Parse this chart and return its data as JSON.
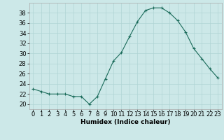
{
  "x": [
    0,
    1,
    2,
    3,
    4,
    5,
    6,
    7,
    8,
    9,
    10,
    11,
    12,
    13,
    14,
    15,
    16,
    17,
    18,
    19,
    20,
    21,
    22,
    23
  ],
  "y": [
    23,
    22.5,
    22,
    22,
    22,
    21.5,
    21.5,
    20,
    21.5,
    25,
    28.5,
    30.2,
    33.3,
    36.3,
    38.5,
    39.0,
    39.0,
    38.0,
    36.5,
    34.2,
    31.0,
    29.0,
    27.0,
    25.2
  ],
  "line_color": "#1a6b5a",
  "marker_color": "#1a6b5a",
  "bg_color": "#cce8e8",
  "grid_color": "#b0d4d4",
  "xlabel": "Humidex (Indice chaleur)",
  "ylim": [
    19,
    40
  ],
  "yticks": [
    20,
    22,
    24,
    26,
    28,
    30,
    32,
    34,
    36,
    38
  ],
  "xtick_labels": [
    "0",
    "1",
    "2",
    "3",
    "4",
    "5",
    "6",
    "7",
    "8",
    "9",
    "10",
    "11",
    "12",
    "13",
    "14",
    "15",
    "16",
    "17",
    "18",
    "19",
    "20",
    "21",
    "22",
    "23"
  ],
  "xlabel_fontsize": 6.5,
  "tick_fontsize": 6.0
}
